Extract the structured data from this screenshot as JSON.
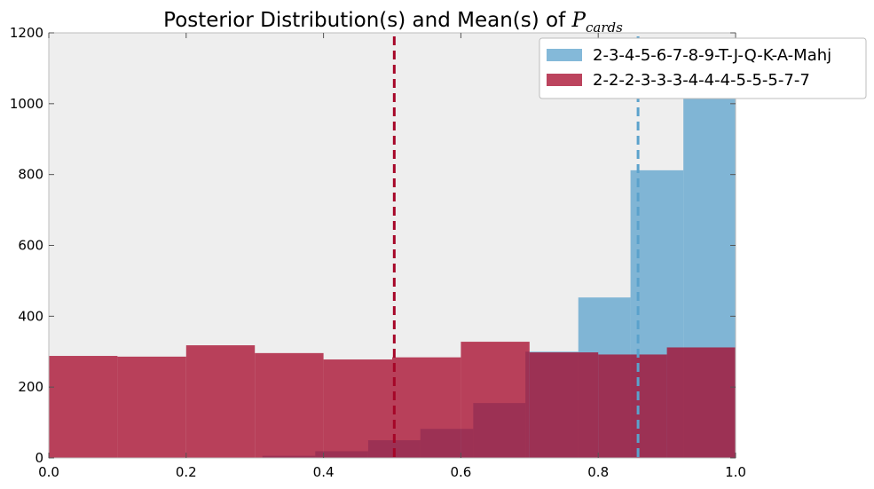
{
  "chart_data": {
    "type": "histogram",
    "title": {
      "prefix": "Posterior Distribution(s) and Mean(s) of ",
      "symbol": "P",
      "subscript": "cards"
    },
    "xlim": [
      0.0,
      1.0
    ],
    "ylim": [
      0,
      1200
    ],
    "x_ticks": [
      "0.0",
      "0.2",
      "0.4",
      "0.6",
      "0.8",
      "1.0"
    ],
    "y_ticks": [
      "0",
      "200",
      "400",
      "600",
      "800",
      "1000",
      "1200"
    ],
    "grid": false,
    "legend_position": "top-right",
    "series": [
      {
        "name": "2-3-4-5-6-7-8-9-T-J-Q-K-A-Mahj",
        "color": "#5ba2cc",
        "mean": 0.858,
        "bins": [
          {
            "x0": 0.311,
            "x1": 0.388,
            "count": 6
          },
          {
            "x0": 0.388,
            "x1": 0.465,
            "count": 19
          },
          {
            "x0": 0.465,
            "x1": 0.541,
            "count": 50
          },
          {
            "x0": 0.541,
            "x1": 0.618,
            "count": 82
          },
          {
            "x0": 0.618,
            "x1": 0.694,
            "count": 155
          },
          {
            "x0": 0.694,
            "x1": 0.771,
            "count": 300
          },
          {
            "x0": 0.771,
            "x1": 0.847,
            "count": 453
          },
          {
            "x0": 0.847,
            "x1": 0.924,
            "count": 812
          },
          {
            "x0": 0.924,
            "x1": 1.0,
            "count": 1040
          }
        ]
      },
      {
        "name": "2-2-2-3-3-3-4-4-4-5-5-5-7-7",
        "color": "#a60628",
        "mean": 0.503,
        "bins": [
          {
            "x0": 0.0,
            "x1": 0.1,
            "count": 288
          },
          {
            "x0": 0.1,
            "x1": 0.2,
            "count": 286
          },
          {
            "x0": 0.2,
            "x1": 0.3,
            "count": 318
          },
          {
            "x0": 0.3,
            "x1": 0.4,
            "count": 296
          },
          {
            "x0": 0.4,
            "x1": 0.5,
            "count": 278
          },
          {
            "x0": 0.5,
            "x1": 0.6,
            "count": 284
          },
          {
            "x0": 0.6,
            "x1": 0.7,
            "count": 328
          },
          {
            "x0": 0.7,
            "x1": 0.8,
            "count": 298
          },
          {
            "x0": 0.8,
            "x1": 0.9,
            "count": 292
          },
          {
            "x0": 0.9,
            "x1": 1.0,
            "count": 312
          }
        ]
      }
    ]
  }
}
